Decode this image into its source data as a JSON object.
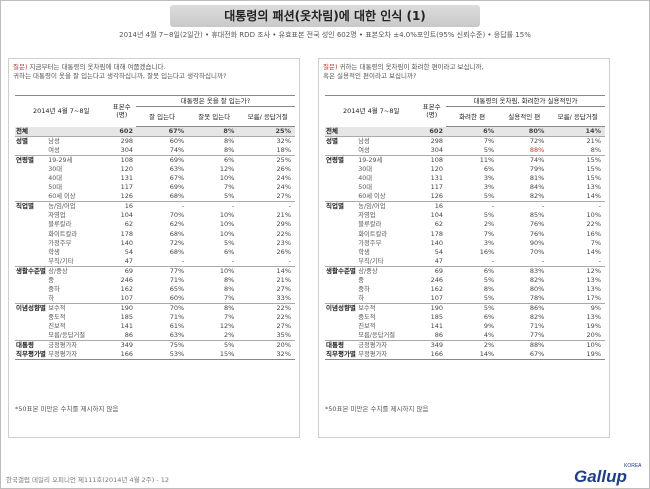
{
  "title": "대통령의 패션(옷차림)에 대한 인식 (1)",
  "subtitle": "2014년 4월 7~8일(2일간) • 휴대전화 RDD 조사 • 유효표본 전국 성인 602명 • 표본오차 ±4.0%포인트(95% 신뢰수준) • 응답률 15%",
  "left": {
    "question_label": "질문)",
    "question_line1": "지금부터는 대통령의 옷차림에 대해 여쭙겠습니다.",
    "question_line2": "귀하는 대통령이 옷을 잘 입는다고 생각하십니까, 잘못 입는다고 생각하십니까?",
    "date_header": "2014년 4월 7~8일",
    "n_header": "표본수 (명)",
    "main_header": "대통령은 옷을 잘 입는가?",
    "col_headers": [
      "잘 입는다",
      "잘못 입는다",
      "모름/ 응답거절"
    ],
    "rows": [
      {
        "g": "전체",
        "s": "",
        "n": "602",
        "v": [
          "67%",
          "8%",
          "25%"
        ],
        "type": "total"
      },
      {
        "g": "성별",
        "s": "남성",
        "n": "298",
        "v": [
          "60%",
          "8%",
          "32%"
        ],
        "type": "gstart"
      },
      {
        "g": "",
        "s": "여성",
        "n": "304",
        "v": [
          "74%",
          "8%",
          "18%"
        ]
      },
      {
        "g": "연령별",
        "s": "19-29세",
        "n": "108",
        "v": [
          "69%",
          "6%",
          "25%"
        ],
        "type": "gstart"
      },
      {
        "g": "",
        "s": "30대",
        "n": "120",
        "v": [
          "63%",
          "12%",
          "26%"
        ]
      },
      {
        "g": "",
        "s": "40대",
        "n": "131",
        "v": [
          "67%",
          "10%",
          "24%"
        ]
      },
      {
        "g": "",
        "s": "50대",
        "n": "117",
        "v": [
          "69%",
          "7%",
          "24%"
        ]
      },
      {
        "g": "",
        "s": "60세 이상",
        "n": "126",
        "v": [
          "68%",
          "5%",
          "27%"
        ]
      },
      {
        "g": "직업별",
        "s": "농/임/어업",
        "n": "16",
        "v": [
          "-",
          "-",
          "-"
        ],
        "type": "gstart"
      },
      {
        "g": "",
        "s": "자영업",
        "n": "104",
        "v": [
          "70%",
          "10%",
          "21%"
        ]
      },
      {
        "g": "",
        "s": "블루칼라",
        "n": "62",
        "v": [
          "62%",
          "10%",
          "29%"
        ]
      },
      {
        "g": "",
        "s": "화이트칼라",
        "n": "178",
        "v": [
          "68%",
          "10%",
          "22%"
        ]
      },
      {
        "g": "",
        "s": "가정주부",
        "n": "140",
        "v": [
          "72%",
          "5%",
          "23%"
        ]
      },
      {
        "g": "",
        "s": "학생",
        "n": "54",
        "v": [
          "68%",
          "6%",
          "26%"
        ]
      },
      {
        "g": "",
        "s": "무직/기타",
        "n": "47",
        "v": [
          "-",
          "-",
          "-"
        ]
      },
      {
        "g": "생활수준별",
        "s": "상/중상",
        "n": "69",
        "v": [
          "77%",
          "10%",
          "14%"
        ],
        "type": "gstart"
      },
      {
        "g": "",
        "s": "중",
        "n": "246",
        "v": [
          "71%",
          "8%",
          "21%"
        ]
      },
      {
        "g": "",
        "s": "중하",
        "n": "162",
        "v": [
          "65%",
          "8%",
          "27%"
        ]
      },
      {
        "g": "",
        "s": "하",
        "n": "107",
        "v": [
          "60%",
          "7%",
          "33%"
        ]
      },
      {
        "g": "이념성향별",
        "s": "보수적",
        "n": "190",
        "v": [
          "70%",
          "8%",
          "22%"
        ],
        "type": "gstart"
      },
      {
        "g": "",
        "s": "중도적",
        "n": "185",
        "v": [
          "71%",
          "7%",
          "22%"
        ]
      },
      {
        "g": "",
        "s": "진보적",
        "n": "141",
        "v": [
          "61%",
          "12%",
          "27%"
        ]
      },
      {
        "g": "",
        "s": "모름/응답거절",
        "n": "86",
        "v": [
          "63%",
          "2%",
          "35%"
        ]
      },
      {
        "g": "대통령",
        "s": "긍정평가자",
        "n": "349",
        "v": [
          "75%",
          "5%",
          "20%"
        ],
        "type": "gstart"
      },
      {
        "g": "직무평가별",
        "s": "부정평가자",
        "n": "166",
        "v": [
          "53%",
          "15%",
          "32%"
        ],
        "type": "last"
      }
    ],
    "note": "*50표본 미만은 수치를 제시하지 않음"
  },
  "right": {
    "question_label": "질문)",
    "question_line1": "귀하는 대통령의 옷차림이 화려한 편이라고 보십니까,",
    "question_line2": "혹은 실용적인 편이라고 보십니까?",
    "date_header": "2014년 4월 7~8일",
    "n_header": "표본수 (명)",
    "main_header": "대통령의 옷차림, 화려한가 실용적인가",
    "col_headers": [
      "화려한 편",
      "실용적인 편",
      "모름/ 응답거절"
    ],
    "rows": [
      {
        "g": "전체",
        "s": "",
        "n": "602",
        "v": [
          "6%",
          "80%",
          "14%"
        ],
        "type": "total"
      },
      {
        "g": "성별",
        "s": "남성",
        "n": "298",
        "v": [
          "7%",
          "72%",
          "21%"
        ],
        "type": "gstart"
      },
      {
        "g": "",
        "s": "여성",
        "n": "304",
        "v": [
          "5%",
          "88%",
          "8%"
        ],
        "hi": [
          1
        ]
      },
      {
        "g": "연령별",
        "s": "19-29세",
        "n": "108",
        "v": [
          "11%",
          "74%",
          "15%"
        ],
        "type": "gstart"
      },
      {
        "g": "",
        "s": "30대",
        "n": "120",
        "v": [
          "6%",
          "79%",
          "15%"
        ]
      },
      {
        "g": "",
        "s": "40대",
        "n": "131",
        "v": [
          "3%",
          "81%",
          "15%"
        ]
      },
      {
        "g": "",
        "s": "50대",
        "n": "117",
        "v": [
          "3%",
          "84%",
          "13%"
        ]
      },
      {
        "g": "",
        "s": "60세 이상",
        "n": "126",
        "v": [
          "5%",
          "82%",
          "14%"
        ]
      },
      {
        "g": "직업별",
        "s": "농/임/어업",
        "n": "16",
        "v": [
          "-",
          "-",
          "-"
        ],
        "type": "gstart"
      },
      {
        "g": "",
        "s": "자영업",
        "n": "104",
        "v": [
          "5%",
          "85%",
          "10%"
        ]
      },
      {
        "g": "",
        "s": "블루칼라",
        "n": "62",
        "v": [
          "2%",
          "76%",
          "22%"
        ]
      },
      {
        "g": "",
        "s": "화이트칼라",
        "n": "178",
        "v": [
          "7%",
          "76%",
          "16%"
        ]
      },
      {
        "g": "",
        "s": "가정주부",
        "n": "140",
        "v": [
          "3%",
          "90%",
          "7%"
        ]
      },
      {
        "g": "",
        "s": "학생",
        "n": "54",
        "v": [
          "16%",
          "70%",
          "14%"
        ]
      },
      {
        "g": "",
        "s": "무직/기타",
        "n": "47",
        "v": [
          "-",
          "-",
          "-"
        ]
      },
      {
        "g": "생활수준별",
        "s": "상/중상",
        "n": "69",
        "v": [
          "6%",
          "83%",
          "12%"
        ],
        "type": "gstart"
      },
      {
        "g": "",
        "s": "중",
        "n": "246",
        "v": [
          "5%",
          "82%",
          "13%"
        ]
      },
      {
        "g": "",
        "s": "중하",
        "n": "162",
        "v": [
          "8%",
          "80%",
          "13%"
        ]
      },
      {
        "g": "",
        "s": "하",
        "n": "107",
        "v": [
          "5%",
          "78%",
          "17%"
        ]
      },
      {
        "g": "이념성향별",
        "s": "보수적",
        "n": "190",
        "v": [
          "5%",
          "86%",
          "9%"
        ],
        "type": "gstart"
      },
      {
        "g": "",
        "s": "중도적",
        "n": "185",
        "v": [
          "6%",
          "82%",
          "13%"
        ]
      },
      {
        "g": "",
        "s": "진보적",
        "n": "141",
        "v": [
          "9%",
          "71%",
          "19%"
        ]
      },
      {
        "g": "",
        "s": "모름/응답거절",
        "n": "86",
        "v": [
          "4%",
          "77%",
          "20%"
        ]
      },
      {
        "g": "대통령",
        "s": "긍정평가자",
        "n": "349",
        "v": [
          "2%",
          "88%",
          "10%"
        ],
        "type": "gstart"
      },
      {
        "g": "직무평가별",
        "s": "부정평가자",
        "n": "166",
        "v": [
          "14%",
          "67%",
          "19%"
        ],
        "type": "last"
      }
    ],
    "note": "*50표본 미만은 수치를 제시하지 않음"
  },
  "footer": "한국갤럽 데일리 오피니언 제111호(2014년 4월 2주) - 12",
  "logo": {
    "text": "Gallup",
    "korea": "KOREA",
    "color": "#1f3f8a"
  },
  "colors": {
    "highlight": "#c0392b",
    "question_label": "#c0392b",
    "total_row_bg": "#e6e6e6"
  }
}
